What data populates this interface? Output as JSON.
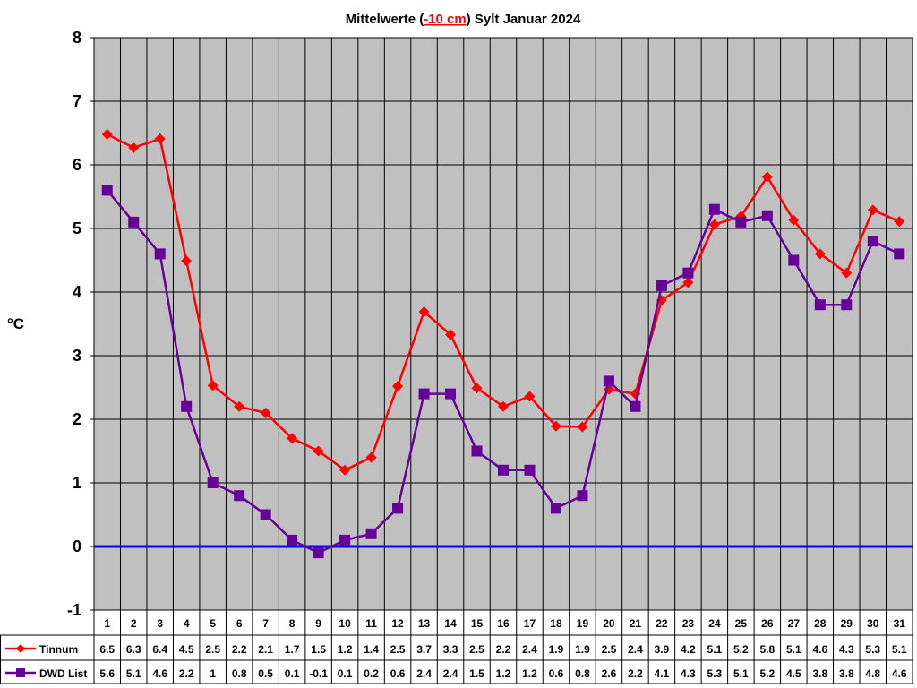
{
  "chart_data": {
    "type": "line",
    "title": "Mittelwerte (-10 cm) Sylt Januar 2024",
    "title_parts": {
      "before": "Mittelwerte (",
      "highlight": "-10 cm",
      "after": ") Sylt Januar 2024"
    },
    "ylabel": "°C",
    "xlabel": "",
    "ylim": [
      -1,
      8
    ],
    "yticks": [
      "8",
      "7",
      "6",
      "5",
      "4",
      "3",
      "2",
      "1",
      "0",
      "-1"
    ],
    "grid": true,
    "background": "#c0c0c0",
    "zero_line_color": "#0000ff",
    "categories": [
      "1",
      "2",
      "3",
      "4",
      "5",
      "6",
      "7",
      "8",
      "9",
      "10",
      "11",
      "12",
      "13",
      "14",
      "15",
      "16",
      "17",
      "18",
      "19",
      "20",
      "21",
      "22",
      "23",
      "24",
      "25",
      "26",
      "27",
      "28",
      "29",
      "30",
      "31"
    ],
    "series": [
      {
        "name": "Tinnum",
        "color": "#ff0000",
        "marker": "diamond",
        "values": [
          6.48,
          6.27,
          6.41,
          4.49,
          2.53,
          2.2,
          2.1,
          1.7,
          1.5,
          1.2,
          1.4,
          2.52,
          3.69,
          3.33,
          2.49,
          2.2,
          2.36,
          1.89,
          1.88,
          2.47,
          2.4,
          3.87,
          4.15,
          5.06,
          5.19,
          5.81,
          5.13,
          4.6,
          4.3,
          5.29,
          5.11
        ],
        "labels": [
          "6.5",
          "6.3",
          "6.4",
          "4.5",
          "2.5",
          "2.2",
          "2.1",
          "1.7",
          "1.5",
          "1.2",
          "1.4",
          "2.5",
          "3.7",
          "3.3",
          "2.5",
          "2.2",
          "2.4",
          "1.9",
          "1.9",
          "2.5",
          "2.4",
          "3.9",
          "4.2",
          "5.1",
          "5.2",
          "5.8",
          "5.1",
          "4.6",
          "4.3",
          "5.3",
          "5.1"
        ]
      },
      {
        "name": "DWD List",
        "color": "#660099",
        "marker": "square",
        "values": [
          5.6,
          5.1,
          4.6,
          2.2,
          1,
          0.8,
          0.5,
          0.1,
          -0.1,
          0.1,
          0.2,
          0.6,
          2.4,
          2.4,
          1.5,
          1.2,
          1.2,
          0.6,
          0.8,
          2.6,
          2.2,
          4.1,
          4.3,
          5.3,
          5.1,
          5.2,
          4.5,
          3.8,
          3.8,
          4.8,
          4.6
        ],
        "labels": [
          "5.6",
          "5.1",
          "4.6",
          "2.2",
          "1",
          "0.8",
          "0.5",
          "0.1",
          "-0.1",
          "0.1",
          "0.2",
          "0.6",
          "2.4",
          "2.4",
          "1.5",
          "1.2",
          "1.2",
          "0.6",
          "0.8",
          "2.6",
          "2.2",
          "4.1",
          "4.3",
          "5.3",
          "5.1",
          "5.2",
          "4.5",
          "3.8",
          "3.8",
          "4.8",
          "4.6"
        ]
      }
    ]
  }
}
